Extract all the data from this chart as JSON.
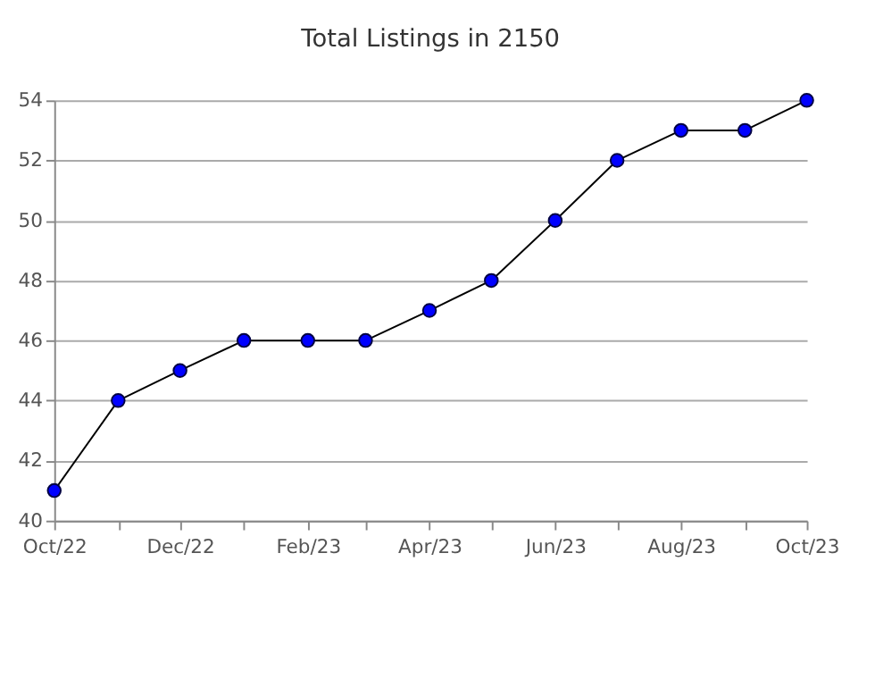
{
  "chart_data": {
    "type": "line",
    "title": "Total Listings in 2150",
    "x": [
      "2022-10",
      "2022-11",
      "2022-12",
      "2023-01",
      "2023-02",
      "2023-03",
      "2023-04",
      "2023-05",
      "2023-06",
      "2023-07",
      "2023-08",
      "2023-09",
      "2023-10"
    ],
    "series": [
      {
        "color": "#0000ff",
        "values": [
          41,
          44,
          45,
          46,
          46,
          46,
          47,
          48,
          50,
          52,
          53,
          53,
          54
        ]
      }
    ],
    "xlim": [
      "2022-10",
      "2023-10"
    ],
    "xticks": [
      {
        "value": "2022-10",
        "label": "Oct/22"
      },
      {
        "value": "2022-11",
        "label": null
      },
      {
        "value": "2022-12",
        "label": "Dec/22"
      },
      {
        "value": "2023-01",
        "label": null
      },
      {
        "value": "2023-02",
        "label": "Feb/23"
      },
      {
        "value": "2023-03",
        "label": null
      },
      {
        "value": "2023-04",
        "label": "Apr/23"
      },
      {
        "value": "2023-05",
        "label": null
      },
      {
        "value": "2023-06",
        "label": "Jun/23"
      },
      {
        "value": "2023-07",
        "label": null
      },
      {
        "value": "2023-08",
        "label": "Aug/23"
      },
      {
        "value": "2023-09",
        "label": null
      },
      {
        "value": "2023-10",
        "label": "Oct/23"
      }
    ],
    "ylim": [
      40,
      54
    ],
    "yticks": [
      40,
      42,
      44,
      46,
      48,
      50,
      52,
      54
    ],
    "grid": "y",
    "marker": "circle",
    "line_style": "solid"
  }
}
